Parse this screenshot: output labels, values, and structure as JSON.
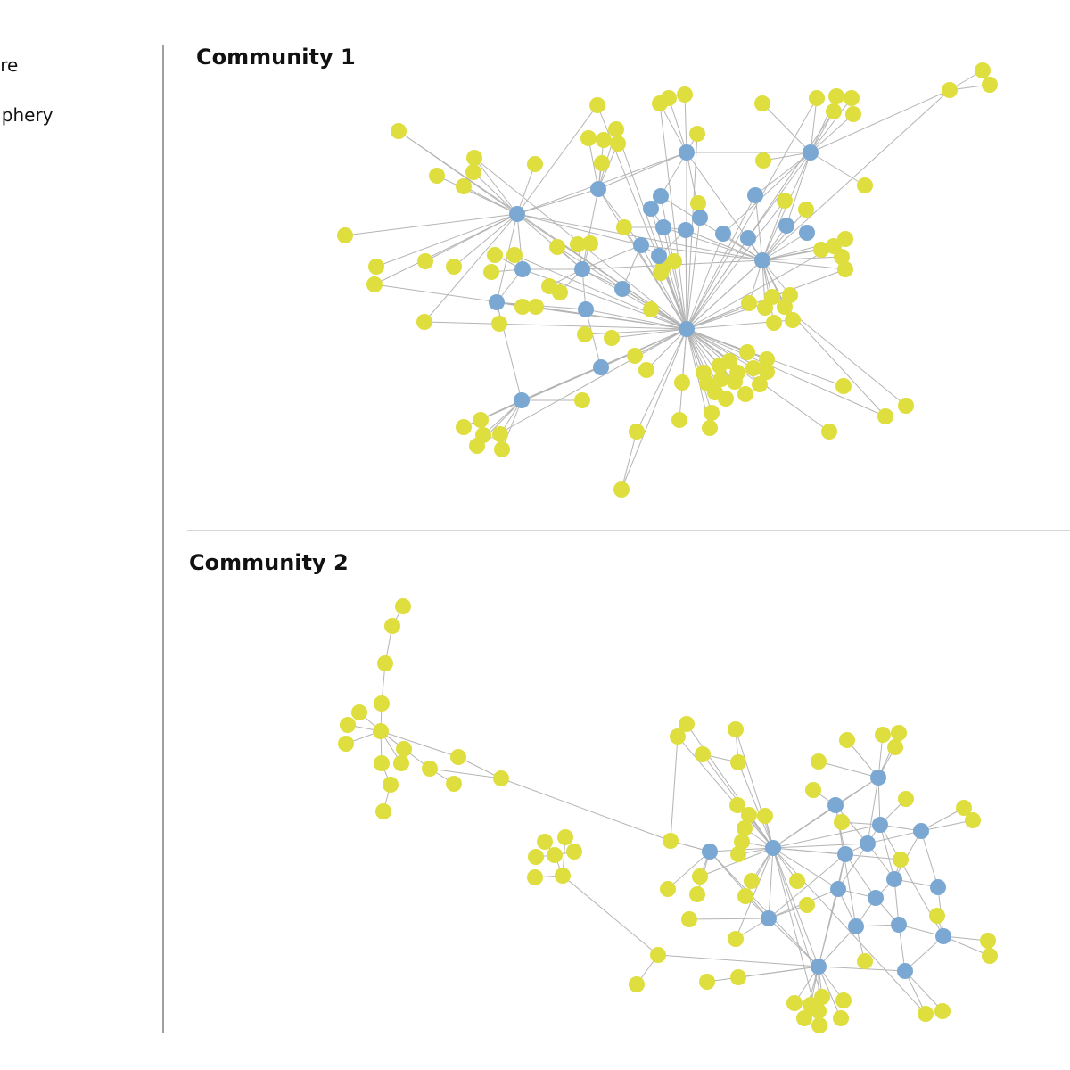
{
  "legend": {
    "core_label": "ore",
    "periphery_label": "riphery"
  },
  "colors": {
    "core": "#7ba8d2",
    "periphery": "#dede3e",
    "edge": "#b4b4b4"
  },
  "panels": [
    {
      "title": "Community 1"
    },
    {
      "title": "Community 2"
    }
  ]
}
